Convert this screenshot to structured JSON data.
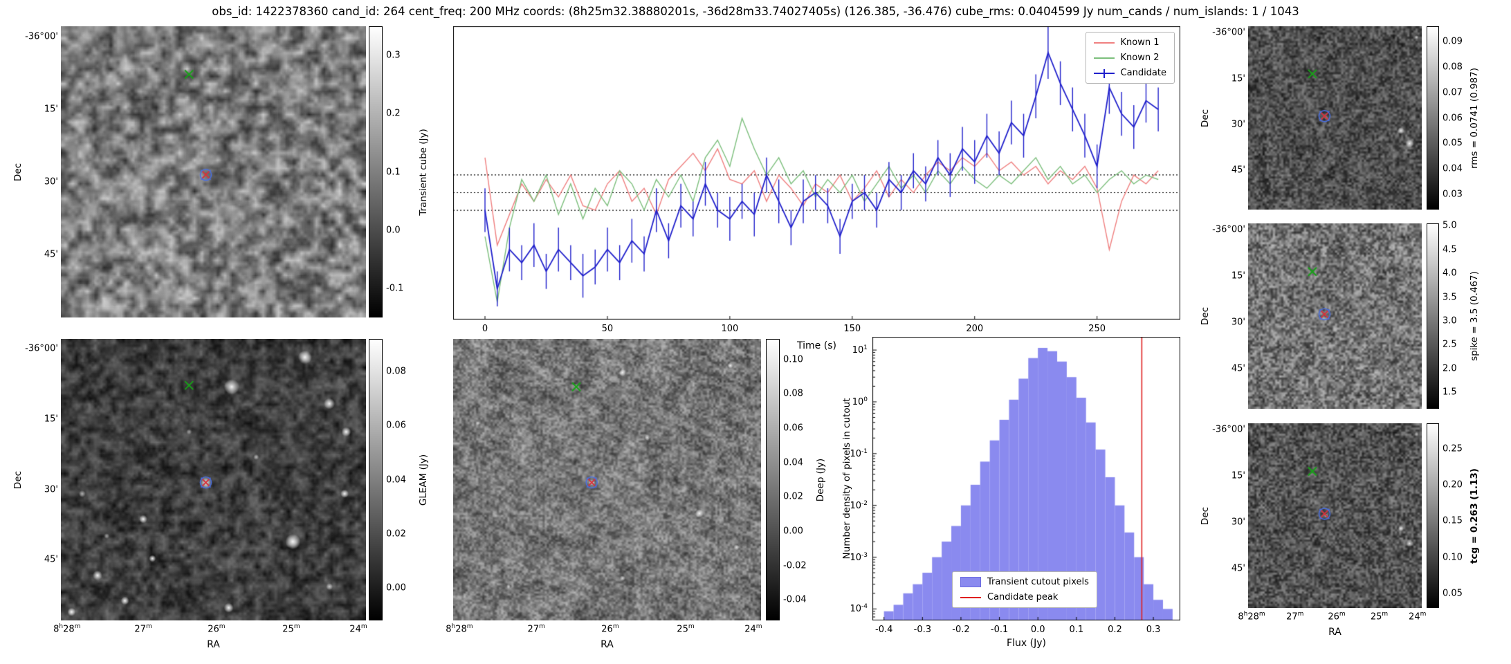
{
  "title": "obs_id: 1422378360 cand_id: 264 cent_freq: 200 MHz coords: (8h25m32.38880201s, -36d28m33.74027405s) (126.385, -36.476) cube_rms: 0.0404599 Jy num_cands / num_islands: 1 / 1043",
  "axis": {
    "dec_label": "Dec",
    "ra_label": "RA",
    "dec_ticks": [
      "-36°00'",
      "15'",
      "30'",
      "45'"
    ],
    "ra_ticks": [
      "8h28m",
      "27m",
      "26m",
      "25m",
      "24m"
    ]
  },
  "panels": {
    "transient_cube": {
      "cbar_label": "Transient cube (Jy)",
      "cbar_ticks": [
        "0.3",
        "0.2",
        "0.1",
        "0.0",
        "-0.1"
      ],
      "cbar_range": [
        -0.15,
        0.35
      ]
    },
    "gleam": {
      "cbar_label": "GLEAM (Jy)",
      "cbar_ticks": [
        "0.08",
        "0.06",
        "0.04",
        "0.02",
        "0.00"
      ],
      "cbar_range": [
        -0.012,
        0.092
      ]
    },
    "deep": {
      "cbar_label": "Deep (Jy)",
      "cbar_ticks": [
        "0.10",
        "0.08",
        "0.06",
        "0.04",
        "0.02",
        "0.00",
        "-0.02",
        "-0.04"
      ],
      "cbar_range": [
        -0.052,
        0.112
      ]
    },
    "rms": {
      "cbar_label": "rms = 0.0741 (0.987)",
      "cbar_ticks": [
        "0.09",
        "0.08",
        "0.07",
        "0.06",
        "0.05",
        "0.04",
        "0.03"
      ],
      "cbar_range": [
        0.024,
        0.096
      ]
    },
    "spike": {
      "cbar_label": "spike = 3.5 (0.467)",
      "cbar_ticks": [
        "5.0",
        "4.5",
        "4.0",
        "3.5",
        "3.0",
        "2.5",
        "2.0",
        "1.5"
      ],
      "cbar_range": [
        1.15,
        5.05
      ]
    },
    "tcg": {
      "cbar_label": "tcg = 0.263 (1.13)",
      "cbar_ticks": [
        "0.25",
        "0.20",
        "0.15",
        "0.10",
        "0.05"
      ],
      "cbar_range": [
        0.03,
        0.285
      ]
    }
  },
  "chart_data": [
    {
      "type": "line",
      "title": "",
      "xlabel": "Time (s)",
      "ylabel": "",
      "xlim": [
        -13,
        284
      ],
      "ylim": [
        -0.29,
        0.38
      ],
      "xticks": [
        0,
        50,
        100,
        150,
        200,
        250
      ],
      "hlines": [
        0.0405,
        0.0,
        -0.0405
      ],
      "legend_position": "upper right",
      "x": [
        0,
        5,
        10,
        15,
        20,
        25,
        30,
        35,
        40,
        45,
        50,
        55,
        60,
        65,
        70,
        75,
        80,
        85,
        90,
        95,
        100,
        105,
        110,
        115,
        120,
        125,
        130,
        135,
        140,
        145,
        150,
        155,
        160,
        165,
        170,
        175,
        180,
        185,
        190,
        195,
        200,
        205,
        210,
        215,
        220,
        225,
        230,
        235,
        240,
        245,
        250,
        255,
        260,
        265,
        270,
        275
      ],
      "series": [
        {
          "name": "Known 1",
          "color": "#f08080",
          "values": [
            0.08,
            -0.12,
            -0.05,
            0.02,
            -0.02,
            0.03,
            -0.01,
            0.04,
            -0.03,
            -0.04,
            0.02,
            0.05,
            -0.02,
            0.01,
            -0.05,
            0.03,
            0.06,
            0.09,
            0.05,
            0.1,
            0.03,
            0.02,
            0.05,
            -0.02,
            0.04,
            0.01,
            -0.03,
            0.02,
            0.0,
            0.04,
            -0.02,
            0.01,
            0.05,
            -0.01,
            0.03,
            0.0,
            0.04,
            0.07,
            0.05,
            0.08,
            0.06,
            0.09,
            0.05,
            0.07,
            0.04,
            0.06,
            0.02,
            0.05,
            0.03,
            0.06,
            0.01,
            -0.13,
            -0.02,
            0.04,
            0.02,
            0.05
          ]
        },
        {
          "name": "Known 2",
          "color": "#7cbf7c",
          "values": [
            -0.1,
            -0.25,
            -0.08,
            0.03,
            -0.02,
            0.04,
            -0.05,
            0.02,
            -0.06,
            0.01,
            -0.03,
            0.05,
            0.02,
            -0.04,
            0.03,
            -0.01,
            0.04,
            -0.02,
            0.08,
            0.12,
            0.06,
            0.17,
            0.1,
            0.04,
            0.08,
            0.02,
            0.05,
            -0.01,
            0.03,
            0.0,
            0.04,
            -0.02,
            0.02,
            0.06,
            0.01,
            0.04,
            0.0,
            0.05,
            0.02,
            0.06,
            0.03,
            0.01,
            0.04,
            0.02,
            0.05,
            0.08,
            0.03,
            0.06,
            0.02,
            0.04,
            0.0,
            0.03,
            0.05,
            0.02,
            0.04,
            0.03
          ]
        },
        {
          "name": "Candidate",
          "color": "#2020cc",
          "values": [
            -0.04,
            -0.22,
            -0.13,
            -0.16,
            -0.12,
            -0.18,
            -0.13,
            -0.16,
            -0.19,
            -0.17,
            -0.13,
            -0.16,
            -0.11,
            -0.14,
            -0.04,
            -0.11,
            -0.03,
            -0.06,
            0.02,
            -0.04,
            -0.06,
            -0.02,
            -0.05,
            0.04,
            -0.02,
            -0.08,
            -0.02,
            0.0,
            -0.03,
            -0.1,
            -0.02,
            0.0,
            -0.04,
            0.03,
            0.0,
            0.05,
            0.02,
            0.08,
            0.04,
            0.1,
            0.07,
            0.13,
            0.09,
            0.16,
            0.13,
            0.22,
            0.32,
            0.25,
            0.19,
            0.13,
            0.06,
            0.24,
            0.18,
            0.15,
            0.21,
            0.19
          ],
          "yerr": [
            0.05,
            0.04,
            0.05,
            0.04,
            0.05,
            0.04,
            0.05,
            0.04,
            0.05,
            0.04,
            0.05,
            0.04,
            0.05,
            0.04,
            0.05,
            0.04,
            0.05,
            0.04,
            0.05,
            0.04,
            0.05,
            0.04,
            0.05,
            0.04,
            0.05,
            0.04,
            0.05,
            0.04,
            0.04,
            0.04,
            0.04,
            0.04,
            0.04,
            0.04,
            0.04,
            0.04,
            0.04,
            0.04,
            0.05,
            0.05,
            0.05,
            0.05,
            0.05,
            0.05,
            0.05,
            0.05,
            0.06,
            0.05,
            0.05,
            0.05,
            0.05,
            0.06,
            0.05,
            0.05,
            0.05,
            0.05
          ]
        }
      ]
    },
    {
      "type": "bar",
      "title": "",
      "xlabel": "Flux (Jy)",
      "ylabel": "Number density of pixels in cutout",
      "xlim": [
        -0.43,
        0.37
      ],
      "ylog": true,
      "ylim": [
        6e-05,
        18
      ],
      "xticks": [
        "-0.4",
        "-0.3",
        "-0.2",
        "-0.1",
        "0.0",
        "0.1",
        "0.2",
        "0.3"
      ],
      "ytick_exponents": [
        1,
        0,
        -1,
        -2,
        -3,
        -4
      ],
      "bin_start": -0.4,
      "bin_width": 0.025,
      "values": [
        9e-05,
        0.00012,
        0.0002,
        0.0003,
        0.0005,
        0.001,
        0.002,
        0.004,
        0.01,
        0.025,
        0.07,
        0.18,
        0.45,
        1.1,
        2.8,
        7,
        11,
        9.5,
        6,
        3,
        1.2,
        0.4,
        0.12,
        0.035,
        0.01,
        0.003,
        0.001,
        0.0003,
        0.00015,
        0.0001
      ],
      "candidate_peak": 0.27,
      "bar_color": "#8a8aef",
      "line_color": "#e02020",
      "legend": [
        "Transient cutout pixels",
        "Candidate peak"
      ]
    }
  ]
}
